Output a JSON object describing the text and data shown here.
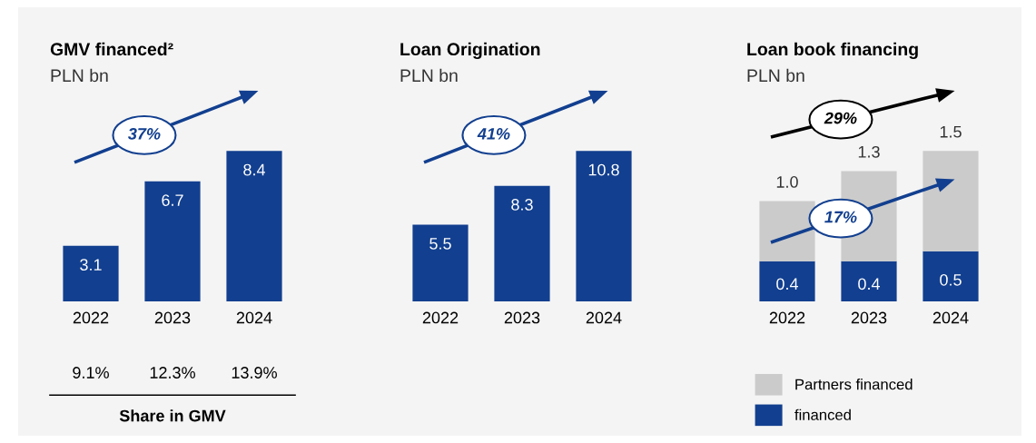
{
  "chart_data": [
    {
      "type": "bar",
      "title": "GMV financed²",
      "subtitle": "PLN bn",
      "categories": [
        "2022",
        "2023",
        "2024"
      ],
      "series": [
        {
          "color": "#123f8f",
          "values": [
            3.1,
            6.7,
            8.4
          ]
        }
      ],
      "data_labels": true,
      "annotations": [
        "37%",
        "9.1%",
        "12.3%",
        "13.9%",
        "Share in GMV"
      ]
    },
    {
      "type": "bar",
      "title": "Loan Origination",
      "subtitle": "PLN bn",
      "categories": [
        "2022",
        "2023",
        "2024"
      ],
      "series": [
        {
          "color": "#123f8f",
          "values": [
            5.5,
            8.3,
            10.8
          ]
        }
      ],
      "data_labels": true,
      "annotations": [
        "41%"
      ]
    },
    {
      "type": "bar",
      "title": "Loan book financing",
      "subtitle": "PLN bn",
      "categories": [
        "2022",
        "2023",
        "2024"
      ],
      "stacked": true,
      "series": [
        {
          "name": "financed",
          "color": "#123f8f",
          "values": [
            0.4,
            0.4,
            0.5
          ],
          "value_labels": [
            "0.4",
            "0.4",
            "0.5"
          ]
        },
        {
          "name": "Partners financed",
          "color": "#cbcbcb",
          "values": [
            0.6,
            0.9,
            1.0
          ],
          "value_labels": [
            null,
            null,
            null
          ]
        }
      ],
      "totals": [
        "1.0",
        "1.3",
        "1.5"
      ],
      "legend": "bottom",
      "annotations": [
        "29%",
        "17%"
      ]
    }
  ]
}
